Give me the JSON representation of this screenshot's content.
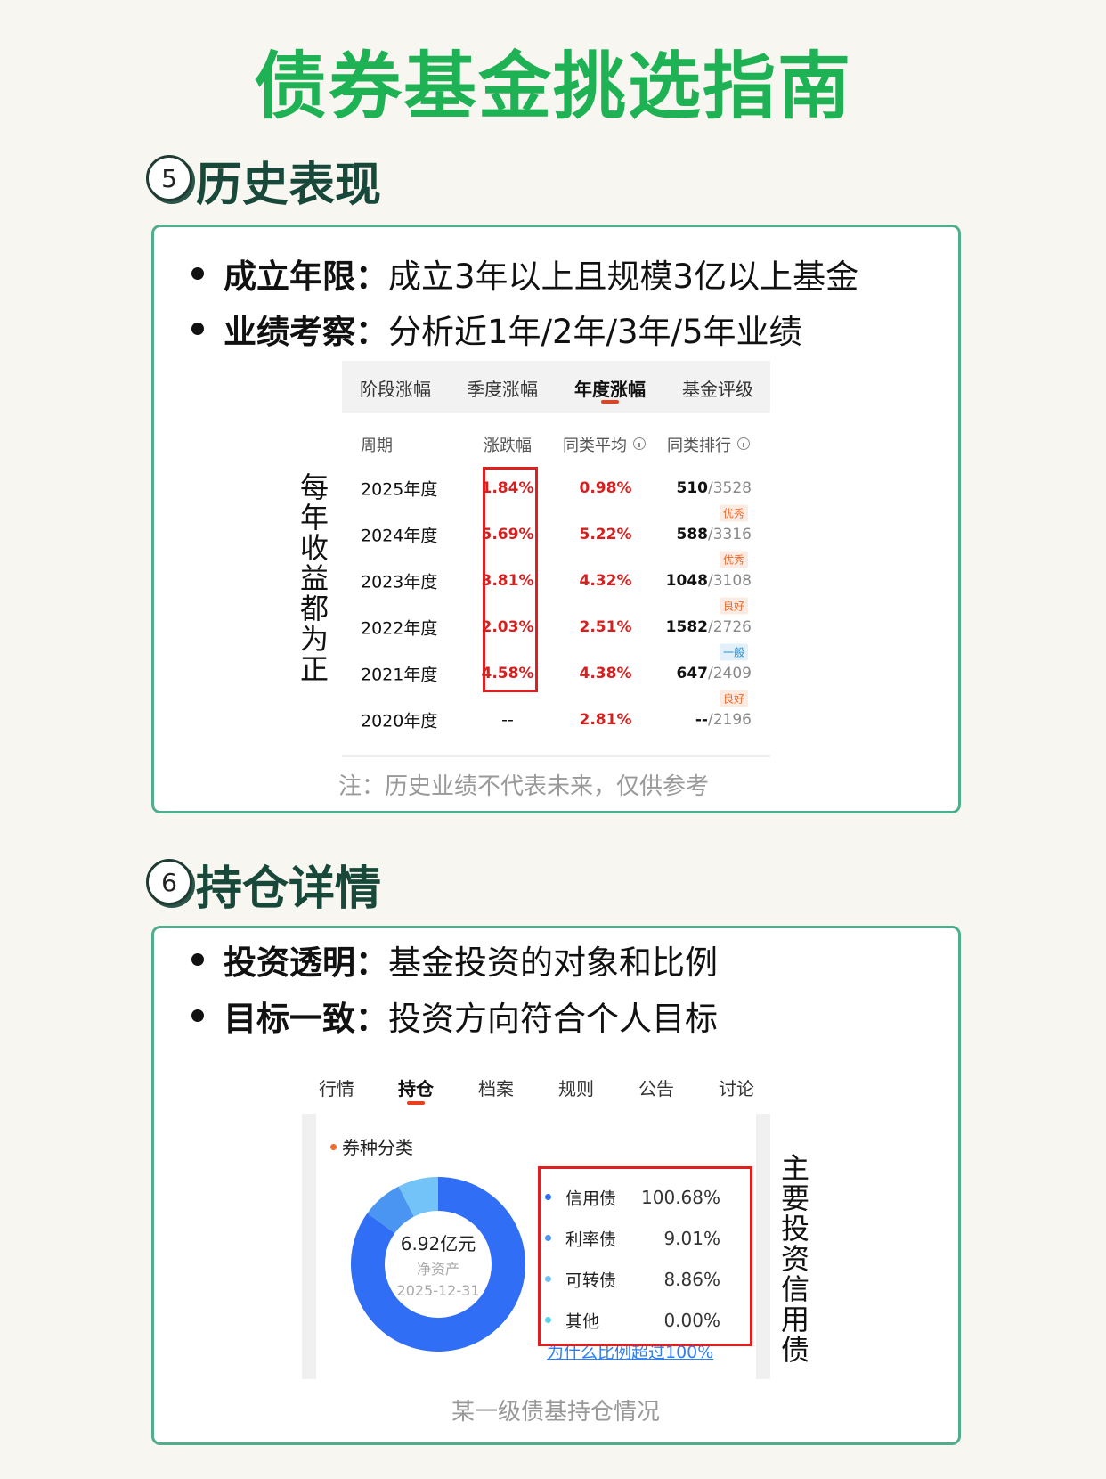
{
  "title": "债券基金挑选指南",
  "sections": [
    {
      "number": "5",
      "heading": "历史表现",
      "bullets": [
        {
          "label": "成立年限：",
          "text": "成立3年以上且规模3亿以上基金"
        },
        {
          "label": "业绩考察：",
          "text": "分析近1年/2年/3年/5年业绩"
        }
      ],
      "screenshot": {
        "tabs": [
          "阶段涨幅",
          "季度涨幅",
          "年度涨幅",
          "基金评级"
        ],
        "active_tab": 2,
        "columns": [
          "周期",
          "涨跌幅",
          "同类平均",
          "同类排行"
        ],
        "rows": [
          {
            "period": "2025年度",
            "change": "1.84%",
            "average": "0.98%",
            "rank": "510",
            "total": "/3528",
            "rating": "优秀",
            "rating_color": "#e8692c"
          },
          {
            "period": "2024年度",
            "change": "5.69%",
            "average": "5.22%",
            "rank": "588",
            "total": "/3316",
            "rating": "优秀",
            "rating_color": "#e8692c"
          },
          {
            "period": "2023年度",
            "change": "3.81%",
            "average": "4.32%",
            "rank": "1048",
            "total": "/3108",
            "rating": "良好",
            "rating_color": "#e8692c"
          },
          {
            "period": "2022年度",
            "change": "2.03%",
            "average": "2.51%",
            "rank": "1582",
            "total": "/2726",
            "rating": "一般",
            "rating_color": "#1e8fd6"
          },
          {
            "period": "2021年度",
            "change": "4.58%",
            "average": "4.38%",
            "rank": "647",
            "total": "/2409",
            "rating": "良好",
            "rating_color": "#e8692c"
          },
          {
            "period": "2020年度",
            "change": "--",
            "average": "2.81%",
            "rank": "--",
            "total": "/2196"
          }
        ]
      },
      "side_note": "每年收益都为正",
      "note": "注：历史业绩不代表未来，仅供参考"
    },
    {
      "number": "6",
      "heading": "持仓详情",
      "bullets": [
        {
          "label": "投资透明：",
          "text": "基金投资的对象和比例"
        },
        {
          "label": "目标一致：",
          "text": "投资方向符合个人目标"
        }
      ],
      "screenshot": {
        "tabs": [
          "行情",
          "持仓",
          "档案",
          "规则",
          "公告",
          "讨论"
        ],
        "active_tab": 1,
        "section_title": "券种分类",
        "center": {
          "amount": "6.92亿元",
          "label": "净资产",
          "date": "2025-12-31"
        },
        "items": [
          {
            "name": "信用债",
            "value": 100.68,
            "value_label": "100.68%",
            "color": "#2f6ef5"
          },
          {
            "name": "利率债",
            "value": 9.01,
            "value_label": "9.01%",
            "color": "#4b95f2"
          },
          {
            "name": "可转债",
            "value": 8.86,
            "value_label": "8.86%",
            "color": "#74c3f8"
          },
          {
            "name": "其他",
            "value": 0.0,
            "value_label": "0.00%",
            "color": "#5dd3ee"
          }
        ],
        "link": "为什么比例超过100%"
      },
      "side_note": "主要投资信用债",
      "caption": "某一级债基持仓情况"
    }
  ]
}
